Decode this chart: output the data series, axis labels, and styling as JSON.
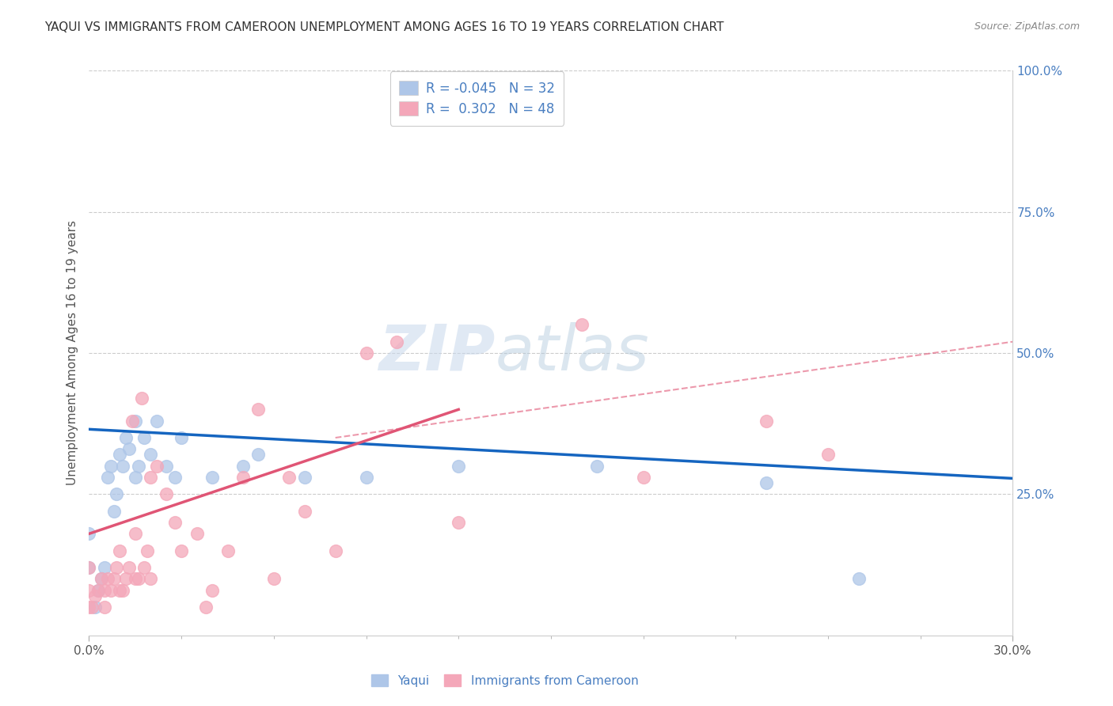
{
  "title": "YAQUI VS IMMIGRANTS FROM CAMEROON UNEMPLOYMENT AMONG AGES 16 TO 19 YEARS CORRELATION CHART",
  "source": "Source: ZipAtlas.com",
  "ylabel": "Unemployment Among Ages 16 to 19 years",
  "xlim": [
    0.0,
    0.3
  ],
  "ylim": [
    0.0,
    1.0
  ],
  "yticks_right": [
    1.0,
    0.75,
    0.5,
    0.25
  ],
  "ytick_labels_right": [
    "100.0%",
    "75.0%",
    "50.0%",
    "25.0%"
  ],
  "grid_color": "#cccccc",
  "background_color": "#ffffff",
  "yaqui_x": [
    0.0,
    0.0,
    0.002,
    0.003,
    0.004,
    0.005,
    0.006,
    0.007,
    0.008,
    0.009,
    0.01,
    0.011,
    0.012,
    0.013,
    0.015,
    0.015,
    0.016,
    0.018,
    0.02,
    0.022,
    0.025,
    0.028,
    0.03,
    0.04,
    0.05,
    0.055,
    0.07,
    0.09,
    0.12,
    0.165,
    0.22,
    0.25
  ],
  "yaqui_y": [
    0.12,
    0.18,
    0.05,
    0.08,
    0.1,
    0.12,
    0.28,
    0.3,
    0.22,
    0.25,
    0.32,
    0.3,
    0.35,
    0.33,
    0.38,
    0.28,
    0.3,
    0.35,
    0.32,
    0.38,
    0.3,
    0.28,
    0.35,
    0.28,
    0.3,
    0.32,
    0.28,
    0.28,
    0.3,
    0.3,
    0.27,
    0.1
  ],
  "cameroon_x": [
    0.0,
    0.0,
    0.0,
    0.001,
    0.002,
    0.003,
    0.004,
    0.005,
    0.005,
    0.006,
    0.007,
    0.008,
    0.009,
    0.01,
    0.01,
    0.011,
    0.012,
    0.013,
    0.014,
    0.015,
    0.015,
    0.016,
    0.017,
    0.018,
    0.019,
    0.02,
    0.02,
    0.022,
    0.025,
    0.028,
    0.03,
    0.035,
    0.038,
    0.04,
    0.045,
    0.05,
    0.055,
    0.06,
    0.065,
    0.07,
    0.08,
    0.09,
    0.1,
    0.12,
    0.16,
    0.18,
    0.22,
    0.24
  ],
  "cameroon_y": [
    0.05,
    0.08,
    0.12,
    0.05,
    0.07,
    0.08,
    0.1,
    0.05,
    0.08,
    0.1,
    0.08,
    0.1,
    0.12,
    0.08,
    0.15,
    0.08,
    0.1,
    0.12,
    0.38,
    0.1,
    0.18,
    0.1,
    0.42,
    0.12,
    0.15,
    0.1,
    0.28,
    0.3,
    0.25,
    0.2,
    0.15,
    0.18,
    0.05,
    0.08,
    0.15,
    0.28,
    0.4,
    0.1,
    0.28,
    0.22,
    0.15,
    0.5,
    0.52,
    0.2,
    0.55,
    0.28,
    0.38,
    0.32
  ],
  "yaqui_trend_x": [
    0.0,
    0.3
  ],
  "yaqui_trend_y": [
    0.365,
    0.278
  ],
  "cameroon_solid_trend_x": [
    0.0,
    0.12
  ],
  "cameroon_solid_trend_y": [
    0.18,
    0.4
  ],
  "cameroon_dashed_trend_x": [
    0.08,
    0.3
  ],
  "cameroon_dashed_trend_y": [
    0.35,
    0.52
  ],
  "yaqui_color": "#aec6e8",
  "cameroon_color": "#f4a7b9",
  "yaqui_trend_color": "#1565c0",
  "cameroon_trend_color": "#e05575",
  "legend1_r": "R = -0.045",
  "legend1_n": "N = 32",
  "legend2_r": "R =  0.302",
  "legend2_n": "N = 48",
  "bottom_legend": [
    "Yaqui",
    "Immigrants from Cameroon"
  ],
  "bottom_legend_colors": [
    "#aec6e8",
    "#f4a7b9"
  ],
  "text_color": "#4a7fc1"
}
